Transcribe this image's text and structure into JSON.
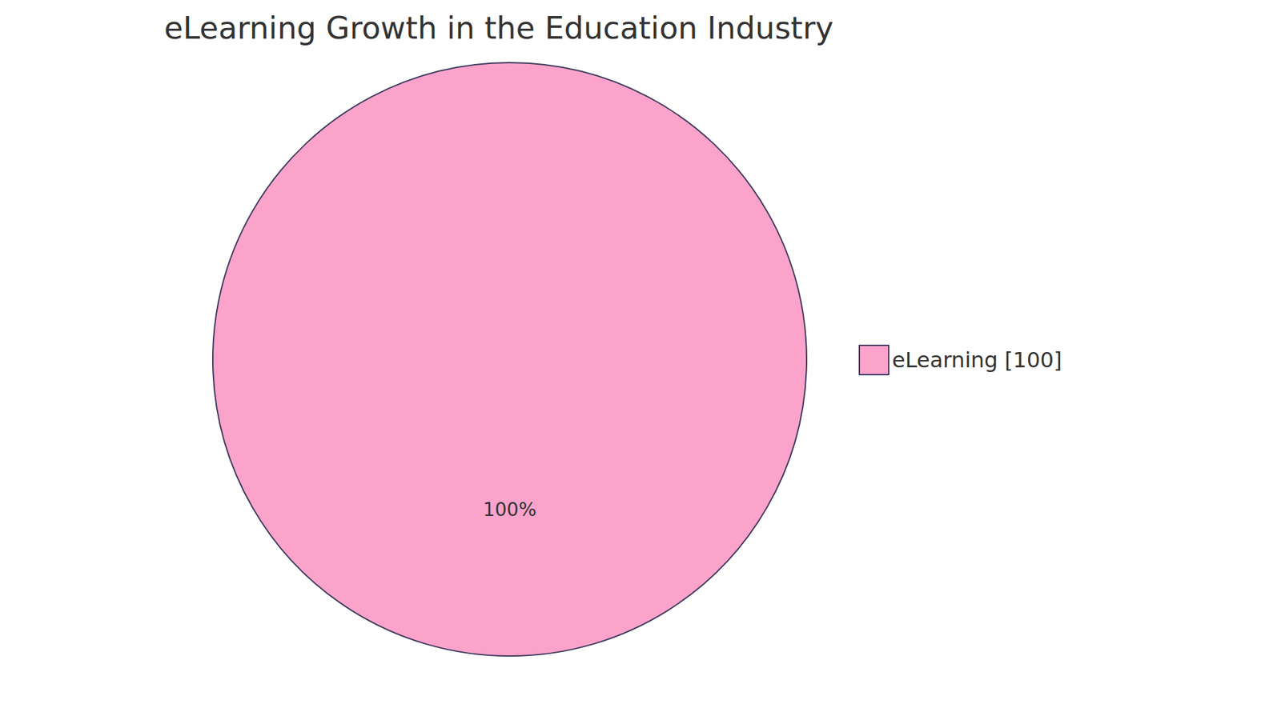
{
  "chart_data": {
    "type": "pie",
    "title": "eLearning Growth in the Education Industry",
    "categories": [
      "eLearning [100]"
    ],
    "values": [
      100
    ],
    "value_labels": [
      "100%"
    ],
    "colors": [
      "#fca3cc"
    ],
    "legend": "right",
    "data_labels": true
  }
}
